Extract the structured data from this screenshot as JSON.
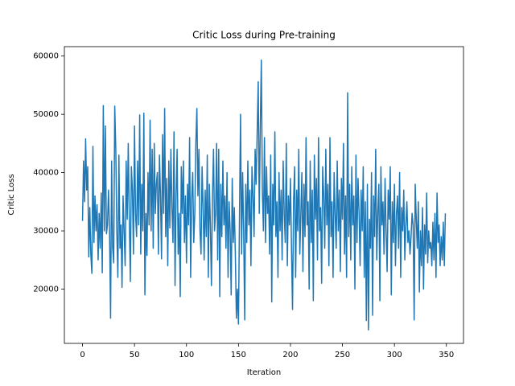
{
  "chart_data": {
    "type": "line",
    "title": "Critic Loss during Pre-training",
    "x_label": "Iteration",
    "y_label": "Critic Loss",
    "xlim": [
      -17.45,
      366.45
    ],
    "ylim": [
      10685,
      61615
    ],
    "xticks": [
      0,
      50,
      100,
      150,
      200,
      250,
      300,
      350
    ],
    "yticks": [
      20000,
      30000,
      40000,
      50000,
      60000
    ],
    "grid": false,
    "x": [
      0,
      1,
      2,
      3,
      4,
      5,
      6,
      7,
      8,
      9,
      10,
      11,
      12,
      13,
      14,
      15,
      16,
      17,
      18,
      19,
      20,
      21,
      22,
      23,
      24,
      25,
      26,
      27,
      28,
      29,
      30,
      31,
      32,
      33,
      34,
      35,
      36,
      37,
      38,
      39,
      40,
      41,
      42,
      43,
      44,
      45,
      46,
      47,
      48,
      49,
      50,
      51,
      52,
      53,
      54,
      55,
      56,
      57,
      58,
      59,
      60,
      61,
      62,
      63,
      64,
      65,
      66,
      67,
      68,
      69,
      70,
      71,
      72,
      73,
      74,
      75,
      76,
      77,
      78,
      79,
      80,
      81,
      82,
      83,
      84,
      85,
      86,
      87,
      88,
      89,
      90,
      91,
      92,
      93,
      94,
      95,
      96,
      97,
      98,
      99,
      100,
      101,
      102,
      103,
      104,
      105,
      106,
      107,
      108,
      109,
      110,
      111,
      112,
      113,
      114,
      115,
      116,
      117,
      118,
      119,
      120,
      121,
      122,
      123,
      124,
      125,
      126,
      127,
      128,
      129,
      130,
      131,
      132,
      133,
      134,
      135,
      136,
      137,
      138,
      139,
      140,
      141,
      142,
      143,
      144,
      145,
      146,
      147,
      148,
      149,
      150,
      151,
      152,
      153,
      154,
      155,
      156,
      157,
      158,
      159,
      160,
      161,
      162,
      163,
      164,
      165,
      166,
      167,
      168,
      169,
      170,
      171,
      172,
      173,
      174,
      175,
      176,
      177,
      178,
      179,
      180,
      181,
      182,
      183,
      184,
      185,
      186,
      187,
      188,
      189,
      190,
      191,
      192,
      193,
      194,
      195,
      196,
      197,
      198,
      199,
      200,
      201,
      202,
      203,
      204,
      205,
      206,
      207,
      208,
      209,
      210,
      211,
      212,
      213,
      214,
      215,
      216,
      217,
      218,
      219,
      220,
      221,
      222,
      223,
      224,
      225,
      226,
      227,
      228,
      229,
      230,
      231,
      232,
      233,
      234,
      235,
      236,
      237,
      238,
      239,
      240,
      241,
      242,
      243,
      244,
      245,
      246,
      247,
      248,
      249,
      250,
      251,
      252,
      253,
      254,
      255,
      256,
      257,
      258,
      259,
      260,
      261,
      262,
      263,
      264,
      265,
      266,
      267,
      268,
      269,
      270,
      271,
      272,
      273,
      274,
      275,
      276,
      277,
      278,
      279,
      280,
      281,
      282,
      283,
      284,
      285,
      286,
      287,
      288,
      289,
      290,
      291,
      292,
      293,
      294,
      295,
      296,
      297,
      298,
      299,
      300,
      301,
      302,
      303,
      304,
      305,
      306,
      307,
      308,
      309,
      310,
      311,
      312,
      313,
      314,
      315,
      316,
      317,
      318,
      319,
      320,
      321,
      322,
      323,
      324,
      325,
      326,
      327,
      328,
      329,
      330,
      331,
      332,
      333,
      334,
      335,
      336,
      337,
      338,
      339,
      340,
      341,
      342,
      343,
      344,
      345,
      346,
      347,
      348,
      349
    ],
    "series": [
      {
        "name": "Critic Loss",
        "color": "#1f77b4",
        "values": [
          31700,
          42000,
          35000,
          45800,
          37000,
          41000,
          25500,
          34000,
          26000,
          22700,
          44500,
          28000,
          36000,
          30000,
          34500,
          25000,
          33000,
          27000,
          36500,
          22800,
          51500,
          30000,
          48000,
          29500,
          31000,
          37000,
          30000,
          15000,
          42000,
          27000,
          24500,
          51400,
          44000,
          30000,
          22000,
          43000,
          27000,
          31000,
          20300,
          36000,
          30000,
          24000,
          42000,
          32000,
          45000,
          32000,
          21300,
          41000,
          37000,
          26000,
          48000,
          33000,
          29000,
          42000,
          31000,
          49900,
          26000,
          38000,
          30000,
          50200,
          19000,
          33000,
          25800,
          40000,
          31000,
          49000,
          30000,
          44000,
          27000,
          45000,
          33000,
          38000,
          40000,
          26000,
          43000,
          36000,
          25200,
          46500,
          33000,
          51000,
          29000,
          39000,
          24000,
          42000,
          30500,
          44000,
          34000,
          28000,
          47000,
          20600,
          36000,
          44000,
          26000,
          33000,
          18700,
          41000,
          33000,
          42000,
          28000,
          36000,
          24500,
          38000,
          31000,
          46000,
          22000,
          35500,
          40000,
          28000,
          33000,
          45000,
          51000,
          36000,
          44000,
          30000,
          26000,
          41000,
          34000,
          25000,
          37000,
          29000,
          43000,
          22000,
          38000,
          31000,
          20600,
          36000,
          44000,
          30000,
          33000,
          45000,
          25000,
          44000,
          18700,
          38000,
          29000,
          42000,
          31000,
          36000,
          27000,
          40000,
          22000,
          35000,
          30000,
          19000,
          39000,
          28000,
          34000,
          26000,
          15000,
          20000,
          14000,
          33000,
          50000,
          26000,
          40000,
          30000,
          14700,
          38000,
          28000,
          42000,
          31000,
          37000,
          24000,
          41000,
          36000,
          29000,
          44000,
          38000,
          47000,
          55600,
          33000,
          48000,
          59300,
          37000,
          30000,
          46000,
          28000,
          41000,
          33000,
          36000,
          26000,
          43000,
          17800,
          38000,
          31000,
          47000,
          29000,
          35000,
          22000,
          40000,
          30000,
          37000,
          25000,
          42000,
          33000,
          28000,
          45000,
          24000,
          36000,
          31000,
          39000,
          27000,
          16500,
          35000,
          41000,
          22000,
          37000,
          30000,
          44000,
          26000,
          33000,
          40000,
          23000,
          38000,
          29000,
          46000,
          31000,
          35000,
          20000,
          42000,
          28000,
          37000,
          18000,
          43000,
          32000,
          39000,
          25000,
          46000,
          30000,
          34000,
          21000,
          41000,
          36000,
          27000,
          44000,
          31000,
          38000,
          24000,
          46000,
          29000,
          35000,
          22000,
          40000,
          33000,
          27000,
          42000,
          30000,
          37000,
          23000,
          39000,
          32000,
          45000,
          26000,
          36000,
          22000,
          53700,
          29000,
          38000,
          25000,
          41000,
          31000,
          36000,
          20000,
          43000,
          28000,
          39000,
          33000,
          24000,
          37000,
          30000,
          41000,
          22000,
          35000,
          14600,
          38000,
          13000,
          32000,
          27000,
          40000,
          15500,
          36000,
          29000,
          44000,
          25000,
          33000,
          38000,
          18000,
          41000,
          31000,
          35000,
          26000,
          39000,
          30000,
          23000,
          37000,
          32000,
          41000,
          19000,
          35000,
          28000,
          38000,
          24000,
          33000,
          36000,
          27000,
          40000,
          22000,
          34000,
          30000,
          37000,
          25000,
          31000,
          35000,
          28000,
          30000,
          26000,
          29000,
          33000,
          31000,
          14700,
          38000,
          32000,
          27000,
          35000,
          19500,
          30000,
          24000,
          34000,
          20000,
          31000,
          26000,
          36500,
          24500,
          30000,
          27000,
          28000,
          24000,
          31500,
          25000,
          33000,
          22000,
          36500,
          28000,
          31000,
          24000,
          29000,
          25000,
          31500,
          24000,
          33000
        ]
      }
    ]
  }
}
